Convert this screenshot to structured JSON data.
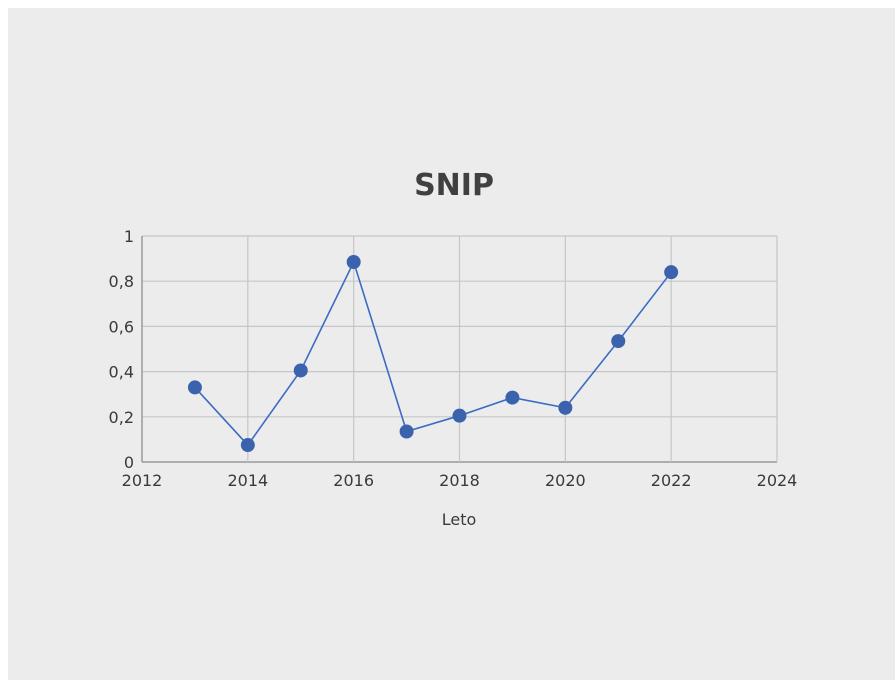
{
  "chart_data": {
    "type": "scatter",
    "title": "SNIP",
    "xlabel": "Leto",
    "ylabel": "",
    "xlim": [
      2012,
      2024
    ],
    "ylim": [
      0,
      1
    ],
    "x_ticks": [
      2012,
      2014,
      2016,
      2018,
      2020,
      2022,
      2024
    ],
    "y_ticks": [
      "0",
      "0,2",
      "0,4",
      "0,6",
      "0,8",
      "1"
    ],
    "grid": true,
    "legend": "none",
    "marker_color": "#3b63ad",
    "line_color": "#3b6cc4",
    "series": [
      {
        "x": [
          2013,
          2014,
          2015,
          2016,
          2017,
          2018,
          2019,
          2020,
          2021,
          2022
        ],
        "values": [
          0.33,
          0.075,
          0.405,
          0.885,
          0.135,
          0.205,
          0.285,
          0.24,
          0.535,
          0.84
        ]
      }
    ]
  }
}
